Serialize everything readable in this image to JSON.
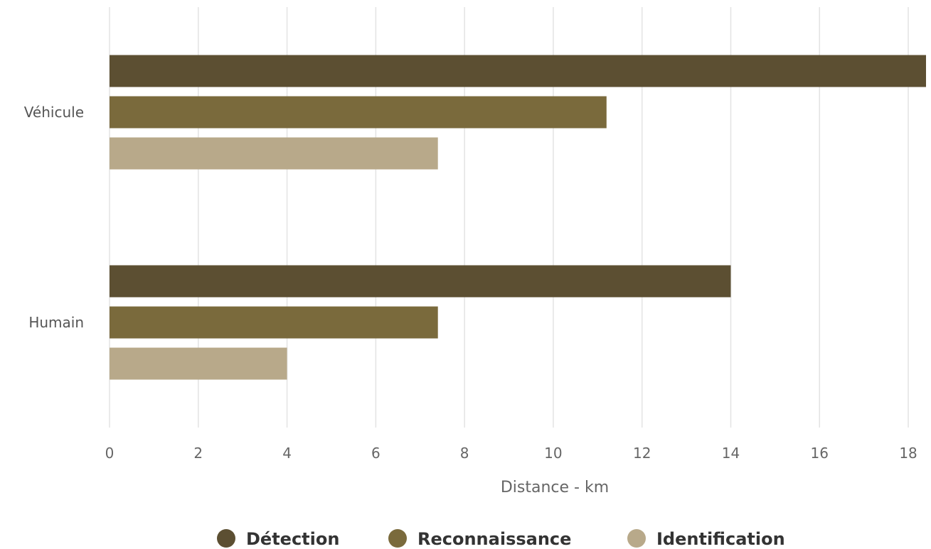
{
  "chart_data": {
    "type": "bar",
    "orientation": "horizontal",
    "categories": [
      "Véhicule",
      "Humain"
    ],
    "series": [
      {
        "name": "Détection",
        "values": [
          18.4,
          14
        ],
        "color": "#5c4f32"
      },
      {
        "name": "Reconnaissance",
        "values": [
          11.2,
          7.4
        ],
        "color": "#7a6a3c"
      },
      {
        "name": "Identification",
        "values": [
          7.4,
          4
        ],
        "color": "#b8a98a"
      }
    ],
    "xlabel": "Distance - km",
    "xlim": [
      0,
      18.4
    ],
    "xticks": [
      "0",
      "2",
      "4",
      "6",
      "8",
      "10",
      "12",
      "14",
      "16",
      "18"
    ],
    "grid": true,
    "legend_position": "bottom-center"
  }
}
